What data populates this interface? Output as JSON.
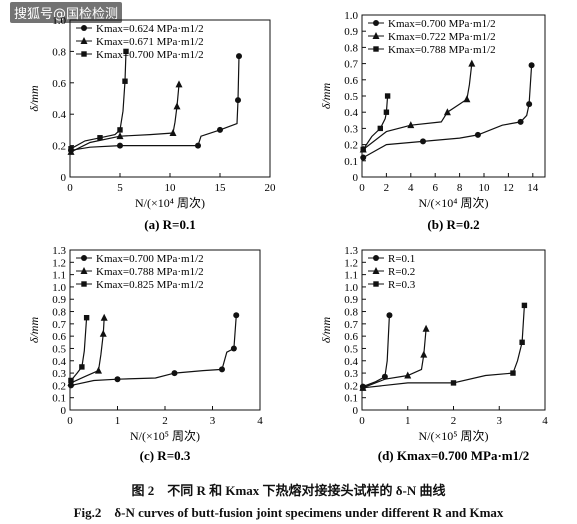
{
  "watermark": "搜狐号@国检检测",
  "figure": {
    "caption_cn": "图 2　不同 R 和 Kmax 下热熔对接接头试样的 δ-N 曲线",
    "caption_en": "Fig.2　δ-N curves of butt-fusion joint specimens under different R and Kmax"
  },
  "chart_data": [
    {
      "type": "line",
      "panel_label": "(a) R=0.1",
      "ylabel": "δ/mm",
      "xlabel": "N/(×10⁴ 周次)",
      "xlim": [
        0,
        20
      ],
      "ylim": [
        0,
        1.0
      ],
      "xticks": [
        "0",
        "5",
        "10",
        "15",
        "20"
      ],
      "yticks": [
        "0",
        "0.2",
        "0.4",
        "0.6",
        "0.8",
        "1.0"
      ],
      "legend_position": "top-left",
      "series": [
        {
          "name": "Kmax=0.624 MPa·m1/2",
          "marker": "circle",
          "points": [
            [
              0.1,
              0.17
            ],
            [
              2.0,
              0.19
            ],
            [
              5.0,
              0.2
            ],
            [
              10.0,
              0.2
            ],
            [
              12.8,
              0.2
            ],
            [
              13.1,
              0.26
            ],
            [
              15.0,
              0.3
            ],
            [
              16.7,
              0.34
            ],
            [
              16.8,
              0.49
            ],
            [
              16.9,
              0.77
            ]
          ]
        },
        {
          "name": "Kmax=0.671 MPa·m1/2",
          "marker": "triangle",
          "points": [
            [
              0.1,
              0.16
            ],
            [
              2.0,
              0.22
            ],
            [
              5.0,
              0.26
            ],
            [
              8.0,
              0.27
            ],
            [
              10.3,
              0.28
            ],
            [
              10.5,
              0.35
            ],
            [
              10.7,
              0.45
            ],
            [
              10.9,
              0.59
            ]
          ]
        },
        {
          "name": "Kmax=0.700 MPa·m1/2",
          "marker": "square",
          "points": [
            [
              0.1,
              0.18
            ],
            [
              1.5,
              0.23
            ],
            [
              3.0,
              0.25
            ],
            [
              4.5,
              0.27
            ],
            [
              5.0,
              0.3
            ],
            [
              5.3,
              0.42
            ],
            [
              5.5,
              0.61
            ],
            [
              5.6,
              0.8
            ]
          ]
        }
      ]
    },
    {
      "type": "line",
      "panel_label": "(b) R=0.2",
      "ylabel": "δ/mm",
      "xlabel": "N/(×10⁴ 周次)",
      "xlim": [
        0,
        15
      ],
      "ylim": [
        0,
        1.0
      ],
      "xticks": [
        "0",
        "2",
        "4",
        "6",
        "8",
        "10",
        "12",
        "14"
      ],
      "yticks": [
        "0",
        "0.1",
        "0.2",
        "0.3",
        "0.4",
        "0.5",
        "0.6",
        "0.7",
        "0.8",
        "0.9",
        "1.0"
      ],
      "legend_position": "top-left",
      "series": [
        {
          "name": "Kmax=0.700 MPa·m1/2",
          "marker": "circle",
          "points": [
            [
              0.1,
              0.12
            ],
            [
              2.0,
              0.2
            ],
            [
              5.0,
              0.22
            ],
            [
              8.0,
              0.24
            ],
            [
              9.5,
              0.26
            ],
            [
              11.5,
              0.32
            ],
            [
              13.0,
              0.34
            ],
            [
              13.5,
              0.38
            ],
            [
              13.7,
              0.45
            ],
            [
              13.9,
              0.69
            ]
          ]
        },
        {
          "name": "Kmax=0.722 MPa·m1/2",
          "marker": "triangle",
          "points": [
            [
              0.1,
              0.17
            ],
            [
              2.0,
              0.28
            ],
            [
              4.0,
              0.32
            ],
            [
              6.5,
              0.34
            ],
            [
              7.0,
              0.4
            ],
            [
              8.0,
              0.45
            ],
            [
              8.6,
              0.48
            ],
            [
              8.8,
              0.57
            ],
            [
              9.0,
              0.7
            ]
          ]
        },
        {
          "name": "Kmax=0.788 MPa·m1/2",
          "marker": "square",
          "points": [
            [
              0.1,
              0.17
            ],
            [
              0.8,
              0.25
            ],
            [
              1.5,
              0.3
            ],
            [
              1.9,
              0.36
            ],
            [
              2.0,
              0.4
            ],
            [
              2.1,
              0.5
            ]
          ]
        }
      ]
    },
    {
      "type": "line",
      "panel_label": "(c) R=0.3",
      "ylabel": "δ/mm",
      "xlabel": "N/(×10⁵ 周次)",
      "xlim": [
        0,
        4
      ],
      "ylim": [
        0,
        1.3
      ],
      "xticks": [
        "0",
        "1",
        "2",
        "3",
        "4"
      ],
      "yticks": [
        "0",
        "0.1",
        "0.2",
        "0.3",
        "0.4",
        "0.5",
        "0.6",
        "0.7",
        "0.8",
        "0.9",
        "1.0",
        "1.1",
        "1.2",
        "1.3"
      ],
      "legend_position": "top-left",
      "series": [
        {
          "name": "Kmax=0.700 MPa·m1/2",
          "marker": "circle",
          "points": [
            [
              0.02,
              0.2
            ],
            [
              0.5,
              0.24
            ],
            [
              1.0,
              0.25
            ],
            [
              1.8,
              0.26
            ],
            [
              2.2,
              0.3
            ],
            [
              2.8,
              0.32
            ],
            [
              3.2,
              0.33
            ],
            [
              3.3,
              0.47
            ],
            [
              3.45,
              0.5
            ],
            [
              3.5,
              0.77
            ]
          ]
        },
        {
          "name": "Kmax=0.788 MPa·m1/2",
          "marker": "triangle",
          "points": [
            [
              0.02,
              0.22
            ],
            [
              0.3,
              0.27
            ],
            [
              0.6,
              0.32
            ],
            [
              0.65,
              0.45
            ],
            [
              0.7,
              0.62
            ],
            [
              0.72,
              0.75
            ]
          ]
        },
        {
          "name": "Kmax=0.825 MPa·m1/2",
          "marker": "square",
          "points": [
            [
              0.02,
              0.24
            ],
            [
              0.15,
              0.3
            ],
            [
              0.25,
              0.35
            ],
            [
              0.3,
              0.48
            ],
            [
              0.35,
              0.75
            ]
          ]
        }
      ]
    },
    {
      "type": "line",
      "panel_label": "(d) Kmax=0.700 MPa·m1/2",
      "ylabel": "δ/mm",
      "xlabel": "N/(×10⁵ 周次)",
      "xlim": [
        0,
        4
      ],
      "ylim": [
        0,
        1.3
      ],
      "xticks": [
        "0",
        "1",
        "2",
        "3",
        "4"
      ],
      "yticks": [
        "0",
        "0.1",
        "0.2",
        "0.3",
        "0.4",
        "0.5",
        "0.6",
        "0.7",
        "0.8",
        "0.9",
        "1.0",
        "1.1",
        "1.2",
        "1.3"
      ],
      "legend_position": "top-left",
      "series": [
        {
          "name": "R=0.1",
          "marker": "circle",
          "points": [
            [
              0.02,
              0.19
            ],
            [
              0.3,
              0.23
            ],
            [
              0.5,
              0.27
            ],
            [
              0.55,
              0.4
            ],
            [
              0.6,
              0.77
            ]
          ]
        },
        {
          "name": "R=0.2",
          "marker": "triangle",
          "points": [
            [
              0.02,
              0.18
            ],
            [
              0.5,
              0.25
            ],
            [
              1.0,
              0.28
            ],
            [
              1.3,
              0.33
            ],
            [
              1.35,
              0.45
            ],
            [
              1.4,
              0.66
            ]
          ]
        },
        {
          "name": "R=0.3",
          "marker": "square",
          "points": [
            [
              0.02,
              0.18
            ],
            [
              1.0,
              0.22
            ],
            [
              2.0,
              0.22
            ],
            [
              2.7,
              0.28
            ],
            [
              3.3,
              0.3
            ],
            [
              3.4,
              0.4
            ],
            [
              3.5,
              0.55
            ],
            [
              3.55,
              0.85
            ]
          ]
        }
      ]
    }
  ]
}
